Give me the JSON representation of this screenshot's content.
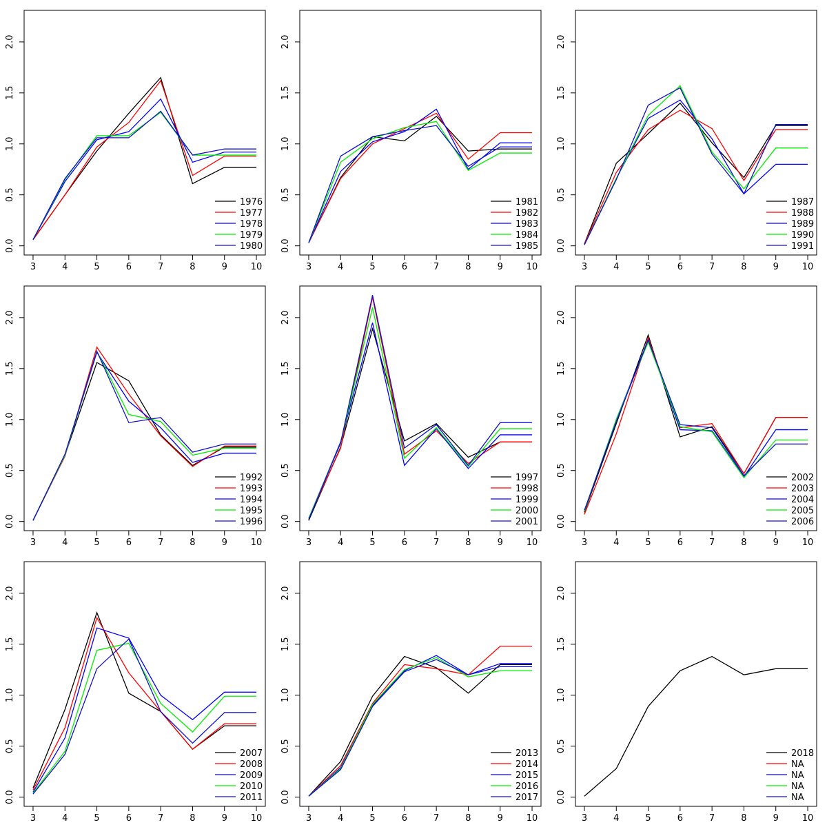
{
  "chart_data": [
    {
      "type": "line",
      "x": [
        3,
        4,
        5,
        6,
        7,
        8,
        9,
        10
      ],
      "xlim": [
        2.72,
        10.28
      ],
      "ylim": [
        -0.09,
        2.31
      ],
      "xticks": [
        3,
        4,
        5,
        6,
        7,
        8,
        9,
        10
      ],
      "yticks": [
        {
          "value": 0,
          "label": "0.0"
        },
        0.5,
        {
          "value": 1,
          "label": "1.0"
        },
        1.5,
        {
          "value": 2,
          "label": "2.0"
        }
      ],
      "legend": "bottomright",
      "series": [
        {
          "name": "1976",
          "color": "#000000",
          "values": [
            0.06,
            0.5,
            0.93,
            1.3,
            1.65,
            0.61,
            0.77,
            0.77
          ]
        },
        {
          "name": "1977",
          "color": "#ff0000",
          "values": [
            0.06,
            0.5,
            0.97,
            1.21,
            1.62,
            0.69,
            0.88,
            0.88
          ]
        },
        {
          "name": "1978",
          "color": "#0000ff",
          "values": [
            0.06,
            0.63,
            1.04,
            1.12,
            1.44,
            0.82,
            0.92,
            0.92
          ]
        },
        {
          "name": "1979",
          "color": "#00ee00",
          "values": [
            0.06,
            0.65,
            1.08,
            1.08,
            1.31,
            0.89,
            0.89,
            0.89
          ]
        },
        {
          "name": "1980",
          "color": "#1010c8",
          "values": [
            0.06,
            0.66,
            1.06,
            1.06,
            1.32,
            0.89,
            0.95,
            0.95
          ]
        }
      ]
    },
    {
      "type": "line",
      "x": [
        3,
        4,
        5,
        6,
        7,
        8,
        9,
        10
      ],
      "xlim": [
        2.72,
        10.28
      ],
      "ylim": [
        -0.09,
        2.31
      ],
      "xticks": [
        3,
        4,
        5,
        6,
        7,
        8,
        9,
        10
      ],
      "yticks": [
        {
          "value": 0,
          "label": "0.0"
        },
        0.5,
        {
          "value": 1,
          "label": "1.0"
        },
        1.5,
        {
          "value": 2,
          "label": "2.0"
        }
      ],
      "legend": "bottomright",
      "series": [
        {
          "name": "1981",
          "color": "#000000",
          "values": [
            0.03,
            0.67,
            1.07,
            1.03,
            1.27,
            0.93,
            0.95,
            0.95
          ]
        },
        {
          "name": "1982",
          "color": "#ff0000",
          "values": [
            0.03,
            0.66,
            1.0,
            1.15,
            1.3,
            0.85,
            1.11,
            1.11
          ]
        },
        {
          "name": "1983",
          "color": "#0000ff",
          "values": [
            0.03,
            0.73,
            1.02,
            1.12,
            1.34,
            0.75,
            1.01,
            1.01
          ]
        },
        {
          "name": "1984",
          "color": "#00ee00",
          "values": [
            0.03,
            0.82,
            1.05,
            1.16,
            1.22,
            0.74,
            0.91,
            0.91
          ]
        },
        {
          "name": "1985",
          "color": "#1010c8",
          "values": [
            0.03,
            0.88,
            1.07,
            1.13,
            1.18,
            0.78,
            0.97,
            0.97
          ]
        }
      ]
    },
    {
      "type": "line",
      "x": [
        3,
        4,
        5,
        6,
        7,
        8,
        9,
        10
      ],
      "xlim": [
        2.72,
        10.28
      ],
      "ylim": [
        -0.09,
        2.31
      ],
      "xticks": [
        3,
        4,
        5,
        6,
        7,
        8,
        9,
        10
      ],
      "yticks": [
        {
          "value": 0,
          "label": "0.0"
        },
        0.5,
        {
          "value": 1,
          "label": "1.0"
        },
        1.5,
        {
          "value": 2,
          "label": "2.0"
        }
      ],
      "legend": "bottomright",
      "series": [
        {
          "name": "1987",
          "color": "#000000",
          "values": [
            0.02,
            0.81,
            1.1,
            1.4,
            1.01,
            0.67,
            1.18,
            1.18
          ]
        },
        {
          "name": "1988",
          "color": "#ff0000",
          "values": [
            0.02,
            0.72,
            1.14,
            1.33,
            1.15,
            0.64,
            1.14,
            1.14
          ]
        },
        {
          "name": "1989",
          "color": "#0000ff",
          "values": [
            0.01,
            0.66,
            1.25,
            1.43,
            1.05,
            0.51,
            0.8,
            0.8
          ]
        },
        {
          "name": "1990",
          "color": "#00ee00",
          "values": [
            0.01,
            0.66,
            1.28,
            1.57,
            0.92,
            0.56,
            0.96,
            0.96
          ]
        },
        {
          "name": "1991",
          "color": "#1010c8",
          "values": [
            0.01,
            0.65,
            1.38,
            1.55,
            0.9,
            0.51,
            1.19,
            1.19
          ]
        }
      ]
    },
    {
      "type": "line",
      "x": [
        3,
        4,
        5,
        6,
        7,
        8,
        9,
        10
      ],
      "xlim": [
        2.72,
        10.28
      ],
      "ylim": [
        -0.09,
        2.31
      ],
      "xticks": [
        3,
        4,
        5,
        6,
        7,
        8,
        9,
        10
      ],
      "yticks": [
        {
          "value": 0,
          "label": "0.0"
        },
        0.5,
        {
          "value": 1,
          "label": "1.0"
        },
        1.5,
        {
          "value": 2,
          "label": "2.0"
        }
      ],
      "legend": "bottomright",
      "series": [
        {
          "name": "1992",
          "color": "#000000",
          "values": [
            0.01,
            0.65,
            1.56,
            1.38,
            0.85,
            0.55,
            0.73,
            0.73
          ]
        },
        {
          "name": "1993",
          "color": "#ff0000",
          "values": [
            0.01,
            0.64,
            1.71,
            1.25,
            0.84,
            0.54,
            0.74,
            0.74
          ]
        },
        {
          "name": "1994",
          "color": "#0000ff",
          "values": [
            0.01,
            0.65,
            1.66,
            1.18,
            0.92,
            0.58,
            0.67,
            0.67
          ]
        },
        {
          "name": "1995",
          "color": "#00ee00",
          "values": [
            0.01,
            0.65,
            1.67,
            1.05,
            0.98,
            0.65,
            0.72,
            0.72
          ]
        },
        {
          "name": "1996",
          "color": "#1010c8",
          "values": [
            0.01,
            0.66,
            1.67,
            0.97,
            1.02,
            0.68,
            0.76,
            0.76
          ]
        }
      ]
    },
    {
      "type": "line",
      "x": [
        3,
        4,
        5,
        6,
        7,
        8,
        9,
        10
      ],
      "xlim": [
        2.72,
        10.28
      ],
      "ylim": [
        -0.09,
        2.31
      ],
      "xticks": [
        3,
        4,
        5,
        6,
        7,
        8,
        9,
        10
      ],
      "yticks": [
        {
          "value": 0,
          "label": "0.0"
        },
        0.5,
        {
          "value": 1,
          "label": "1.0"
        },
        1.5,
        {
          "value": 2,
          "label": "2.0"
        }
      ],
      "legend": "bottomright",
      "series": [
        {
          "name": "1997",
          "color": "#000000",
          "values": [
            0.01,
            0.73,
            1.89,
            0.79,
            0.96,
            0.63,
            0.78,
            0.78
          ]
        },
        {
          "name": "1998",
          "color": "#ff0000",
          "values": [
            0.03,
            0.72,
            2.2,
            0.66,
            0.89,
            0.57,
            0.78,
            0.78
          ]
        },
        {
          "name": "1999",
          "color": "#0000ff",
          "values": [
            0.03,
            0.78,
            1.95,
            0.55,
            0.91,
            0.52,
            0.85,
            0.85
          ]
        },
        {
          "name": "2000",
          "color": "#00ee00",
          "values": [
            0.03,
            0.77,
            2.1,
            0.62,
            0.92,
            0.54,
            0.91,
            0.91
          ]
        },
        {
          "name": "2001",
          "color": "#1010c8",
          "values": [
            0.02,
            0.77,
            2.22,
            0.72,
            0.95,
            0.55,
            0.97,
            0.97
          ]
        }
      ]
    },
    {
      "type": "line",
      "x": [
        3,
        4,
        5,
        6,
        7,
        8,
        9,
        10
      ],
      "xlim": [
        2.72,
        10.28
      ],
      "ylim": [
        -0.09,
        2.31
      ],
      "xticks": [
        3,
        4,
        5,
        6,
        7,
        8,
        9,
        10
      ],
      "yticks": [
        {
          "value": 0,
          "label": "0.0"
        },
        0.5,
        {
          "value": 1,
          "label": "1.0"
        },
        1.5,
        {
          "value": 2,
          "label": "2.0"
        }
      ],
      "legend": "bottomright",
      "series": [
        {
          "name": "2002",
          "color": "#000000",
          "values": [
            0.09,
            0.96,
            1.83,
            0.83,
            0.93,
            0.47,
            1.02,
            1.02
          ]
        },
        {
          "name": "2003",
          "color": "#ff0000",
          "values": [
            0.07,
            0.86,
            1.8,
            0.92,
            0.96,
            0.47,
            1.02,
            1.02
          ]
        },
        {
          "name": "2004",
          "color": "#0000ff",
          "values": [
            0.1,
            1.0,
            1.78,
            0.9,
            0.89,
            0.44,
            0.9,
            0.9
          ]
        },
        {
          "name": "2005",
          "color": "#00ee00",
          "values": [
            0.1,
            1.0,
            1.76,
            0.93,
            0.88,
            0.43,
            0.8,
            0.8
          ]
        },
        {
          "name": "2006",
          "color": "#1010c8",
          "values": [
            0.11,
            0.98,
            1.78,
            0.95,
            0.92,
            0.45,
            0.76,
            0.76
          ]
        }
      ]
    },
    {
      "type": "line",
      "x": [
        3,
        4,
        5,
        6,
        7,
        8,
        9,
        10
      ],
      "xlim": [
        2.72,
        10.28
      ],
      "ylim": [
        -0.09,
        2.31
      ],
      "xticks": [
        3,
        4,
        5,
        6,
        7,
        8,
        9,
        10
      ],
      "yticks": [
        {
          "value": 0,
          "label": "0.0"
        },
        0.5,
        {
          "value": 1,
          "label": "1.0"
        },
        1.5,
        {
          "value": 2,
          "label": "2.0"
        }
      ],
      "legend": "bottomright",
      "series": [
        {
          "name": "2007",
          "color": "#000000",
          "values": [
            0.09,
            0.86,
            1.81,
            1.02,
            0.84,
            0.47,
            0.7,
            0.7
          ]
        },
        {
          "name": "2008",
          "color": "#ff0000",
          "values": [
            0.07,
            0.68,
            1.76,
            1.22,
            0.84,
            0.47,
            0.72,
            0.72
          ]
        },
        {
          "name": "2009",
          "color": "#0000ff",
          "values": [
            0.05,
            0.58,
            1.66,
            1.56,
            1.0,
            0.76,
            1.03,
            1.03
          ]
        },
        {
          "name": "2010",
          "color": "#00ee00",
          "values": [
            0.04,
            0.45,
            1.44,
            1.51,
            0.92,
            0.64,
            0.99,
            0.99
          ]
        },
        {
          "name": "2011",
          "color": "#1010c8",
          "values": [
            0.03,
            0.42,
            1.26,
            1.55,
            0.84,
            0.53,
            0.83,
            0.83
          ]
        }
      ]
    },
    {
      "type": "line",
      "x": [
        3,
        4,
        5,
        6,
        7,
        8,
        9,
        10
      ],
      "xlim": [
        2.72,
        10.28
      ],
      "ylim": [
        -0.09,
        2.31
      ],
      "xticks": [
        3,
        4,
        5,
        6,
        7,
        8,
        9,
        10
      ],
      "yticks": [
        {
          "value": 0,
          "label": "0.0"
        },
        0.5,
        {
          "value": 1,
          "label": "1.0"
        },
        1.5,
        {
          "value": 2,
          "label": "2.0"
        }
      ],
      "legend": "bottomright",
      "series": [
        {
          "name": "2013",
          "color": "#000000",
          "values": [
            0.01,
            0.35,
            0.99,
            1.38,
            1.27,
            1.02,
            1.3,
            1.3
          ]
        },
        {
          "name": "2014",
          "color": "#ff0000",
          "values": [
            0.01,
            0.31,
            0.92,
            1.3,
            1.26,
            1.2,
            1.48,
            1.48
          ]
        },
        {
          "name": "2015",
          "color": "#0000ff",
          "values": [
            0.01,
            0.29,
            0.9,
            1.24,
            1.39,
            1.2,
            1.31,
            1.31
          ]
        },
        {
          "name": "2016",
          "color": "#00ee00",
          "values": [
            0.01,
            0.28,
            0.91,
            1.25,
            1.37,
            1.18,
            1.24,
            1.24
          ]
        },
        {
          "name": "2017",
          "color": "#1010c8",
          "values": [
            0.01,
            0.27,
            0.89,
            1.23,
            1.35,
            1.2,
            1.28,
            1.28
          ]
        }
      ]
    },
    {
      "type": "line",
      "x": [
        3,
        4,
        5,
        6,
        7,
        8,
        9,
        10
      ],
      "xlim": [
        2.72,
        10.28
      ],
      "ylim": [
        -0.09,
        2.31
      ],
      "xticks": [
        3,
        4,
        5,
        6,
        7,
        8,
        9,
        10
      ],
      "yticks": [
        {
          "value": 0,
          "label": "0.0"
        },
        0.5,
        {
          "value": 1,
          "label": "1.0"
        },
        1.5,
        {
          "value": 2,
          "label": "2.0"
        }
      ],
      "legend": "bottomright",
      "series": [
        {
          "name": "2018",
          "color": "#000000",
          "values": [
            0.01,
            0.28,
            0.89,
            1.24,
            1.38,
            1.2,
            1.26,
            1.26
          ]
        },
        {
          "name": "NA",
          "color": "#ff0000",
          "values": [
            null,
            null,
            null,
            null,
            null,
            null,
            null,
            null
          ]
        },
        {
          "name": "NA",
          "color": "#0000ff",
          "values": [
            null,
            null,
            null,
            null,
            null,
            null,
            null,
            null
          ]
        },
        {
          "name": "NA",
          "color": "#00ee00",
          "values": [
            null,
            null,
            null,
            null,
            null,
            null,
            null,
            null
          ]
        },
        {
          "name": "NA",
          "color": "#1010c8",
          "values": [
            null,
            null,
            null,
            null,
            null,
            null,
            null,
            null
          ]
        }
      ]
    }
  ]
}
